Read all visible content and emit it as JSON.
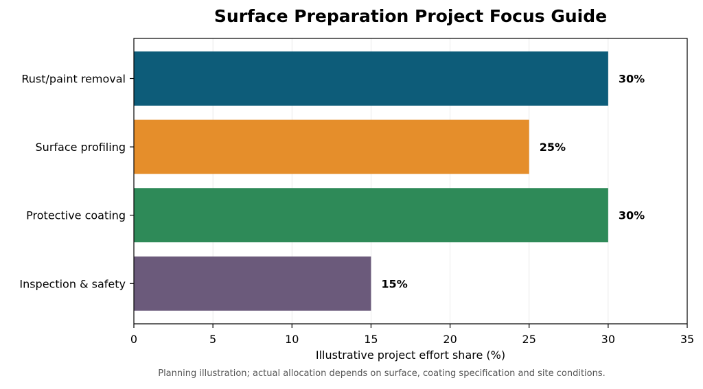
{
  "chart_data": {
    "type": "bar",
    "orientation": "horizontal",
    "title": "Surface Preparation Project Focus Guide",
    "xlabel": "Illustrative project effort share (%)",
    "ylabel": "",
    "xlim": [
      0,
      35
    ],
    "xticks": [
      0,
      5,
      10,
      15,
      20,
      25,
      30,
      35
    ],
    "grid": "vertical",
    "categories": [
      "Rust/paint removal",
      "Surface profiling",
      "Protective coating",
      "Inspection & safety"
    ],
    "values": [
      30,
      25,
      30,
      15
    ],
    "data_labels": [
      "30%",
      "25%",
      "30%",
      "15%"
    ],
    "colors": [
      "#0d5c79",
      "#e58e2b",
      "#2e8a58",
      "#6b5a7b"
    ],
    "footnote": "Planning illustration; actual allocation depends on surface, coating specification and site conditions."
  }
}
